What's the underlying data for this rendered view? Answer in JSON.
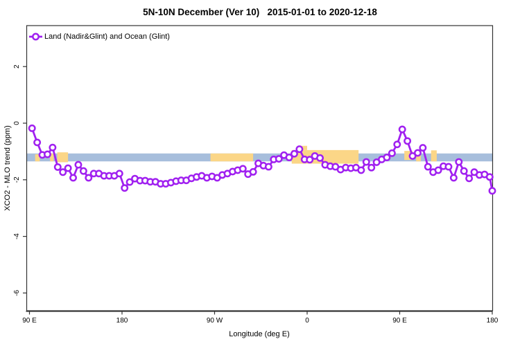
{
  "chart": {
    "title": "5N-10N December (Ver 10)   2015-01-01 to 2020-12-18",
    "xlabel": "Longitude (deg E)",
    "ylabel": "XCO2 - MLO trend (ppm)",
    "legend": {
      "label": "Land (Nadir&Glint) and Ocean (Glint)"
    }
  },
  "chart_data": {
    "type": "line",
    "title": "5N-10N December (Ver 10)   2015-01-01 to 2020-12-18",
    "xlabel": "Longitude (deg E)",
    "ylabel": "XCO2 - MLO trend (ppm)",
    "legend_position": "top-left-inside",
    "grid": false,
    "xlim_unwrapped_deg": [
      90,
      540
    ],
    "ylim": [
      -6.6,
      3.4
    ],
    "x_ticks": [
      {
        "deg": 90,
        "label": "90 E"
      },
      {
        "deg": 180,
        "label": "180"
      },
      {
        "deg": 270,
        "label": "90 W"
      },
      {
        "deg": 360,
        "label": "0"
      },
      {
        "deg": 450,
        "label": "90 E"
      },
      {
        "deg": 540,
        "label": "180"
      }
    ],
    "y_ticks": [
      {
        "value": 2,
        "label": "2"
      },
      {
        "value": 0,
        "label": "0"
      },
      {
        "value": -2,
        "label": "-2"
      },
      {
        "value": -4,
        "label": "-4"
      },
      {
        "value": -6,
        "label": "-6"
      }
    ],
    "colors": {
      "series": "#A020F0",
      "marker_fill": "#FFFFFF",
      "ocean_band": "#A7BEDC",
      "land": "#FBD687",
      "axis": "#333333"
    },
    "ocean_band": {
      "y_from": -1.07,
      "y_to": -1.35
    },
    "land_segments": [
      {
        "lon_from": 95.5,
        "lon_to": 100,
        "y_from": -1.1,
        "y_to": -1.35
      },
      {
        "lon_from": 110,
        "lon_to": 113.5,
        "y_from": -1.07,
        "y_to": -1.35
      },
      {
        "lon_from": 117,
        "lon_to": 127.5,
        "y_from": -1.03,
        "y_to": -1.38
      },
      {
        "lon_from": 266,
        "lon_to": 307.5,
        "y_from": -1.07,
        "y_to": -1.35
      },
      {
        "lon_from": 345,
        "lon_to": 410,
        "y_from": -0.95,
        "y_to": -1.43
      },
      {
        "lon_from": 351,
        "lon_to": 360,
        "y_from": -0.8,
        "y_to": -0.95
      },
      {
        "lon_from": 439.5,
        "lon_to": 441.5,
        "y_from": -1.07,
        "y_to": -1.22
      },
      {
        "lon_from": 454.5,
        "lon_to": 462.5,
        "y_from": -0.98,
        "y_to": -1.3
      },
      {
        "lon_from": 466,
        "lon_to": 470.5,
        "y_from": -1.07,
        "y_to": -1.35
      },
      {
        "lon_from": 480.5,
        "lon_to": 486,
        "y_from": -0.96,
        "y_to": -1.35
      }
    ],
    "series": [
      {
        "name": "Land (Nadir&Glint) and Ocean (Glint)",
        "marker": "open-circle",
        "x": [
          92.5,
          97.5,
          102.5,
          107.5,
          112.5,
          117.5,
          122.5,
          127.5,
          132.5,
          137.5,
          142.5,
          147.5,
          152.5,
          157.5,
          162.5,
          167.5,
          172.5,
          177.5,
          182.5,
          187.5,
          192.5,
          197.5,
          202.5,
          207.5,
          212.5,
          217.5,
          222.5,
          227.5,
          232.5,
          237.5,
          242.5,
          247.5,
          252.5,
          257.5,
          262.5,
          267.5,
          272.5,
          277.5,
          282.5,
          287.5,
          292.5,
          297.5,
          302.5,
          307.5,
          312.5,
          317.5,
          322.5,
          327.5,
          332.5,
          337.5,
          342.5,
          347.5,
          352.5,
          357.5,
          362.5,
          367.5,
          372.5,
          377.5,
          382.5,
          387.5,
          392.5,
          397.5,
          402.5,
          407.5,
          412.5,
          417.5,
          422.5,
          427.5,
          432.5,
          437.5,
          442.5,
          447.5,
          452.5,
          457.5,
          462.5,
          467.5,
          472.5,
          477.5,
          482.5,
          487.5,
          492.5,
          497.5,
          502.5,
          507.5,
          512.5,
          517.5,
          522.5,
          527.5,
          532.5,
          537.5,
          540
        ],
        "y": [
          -0.18,
          -0.68,
          -1.12,
          -1.1,
          -0.86,
          -1.55,
          -1.73,
          -1.59,
          -1.93,
          -1.47,
          -1.69,
          -1.93,
          -1.78,
          -1.78,
          -1.86,
          -1.86,
          -1.86,
          -1.78,
          -2.29,
          -2.08,
          -1.96,
          -2.03,
          -2.03,
          -2.07,
          -2.07,
          -2.14,
          -2.14,
          -2.1,
          -2.05,
          -2.02,
          -2.02,
          -1.95,
          -1.9,
          -1.86,
          -1.93,
          -1.88,
          -1.93,
          -1.83,
          -1.78,
          -1.71,
          -1.66,
          -1.61,
          -1.8,
          -1.72,
          -1.42,
          -1.5,
          -1.54,
          -1.28,
          -1.26,
          -1.13,
          -1.21,
          -1.08,
          -0.92,
          -1.28,
          -1.29,
          -1.16,
          -1.23,
          -1.47,
          -1.52,
          -1.54,
          -1.64,
          -1.57,
          -1.59,
          -1.57,
          -1.66,
          -1.37,
          -1.57,
          -1.38,
          -1.28,
          -1.21,
          -1.06,
          -0.75,
          -0.22,
          -0.63,
          -1.16,
          -1.05,
          -0.87,
          -1.54,
          -1.73,
          -1.66,
          -1.52,
          -1.54,
          -1.93,
          -1.37,
          -1.69,
          -1.95,
          -1.73,
          -1.83,
          -1.81,
          -1.9,
          -2.39
        ]
      }
    ]
  }
}
